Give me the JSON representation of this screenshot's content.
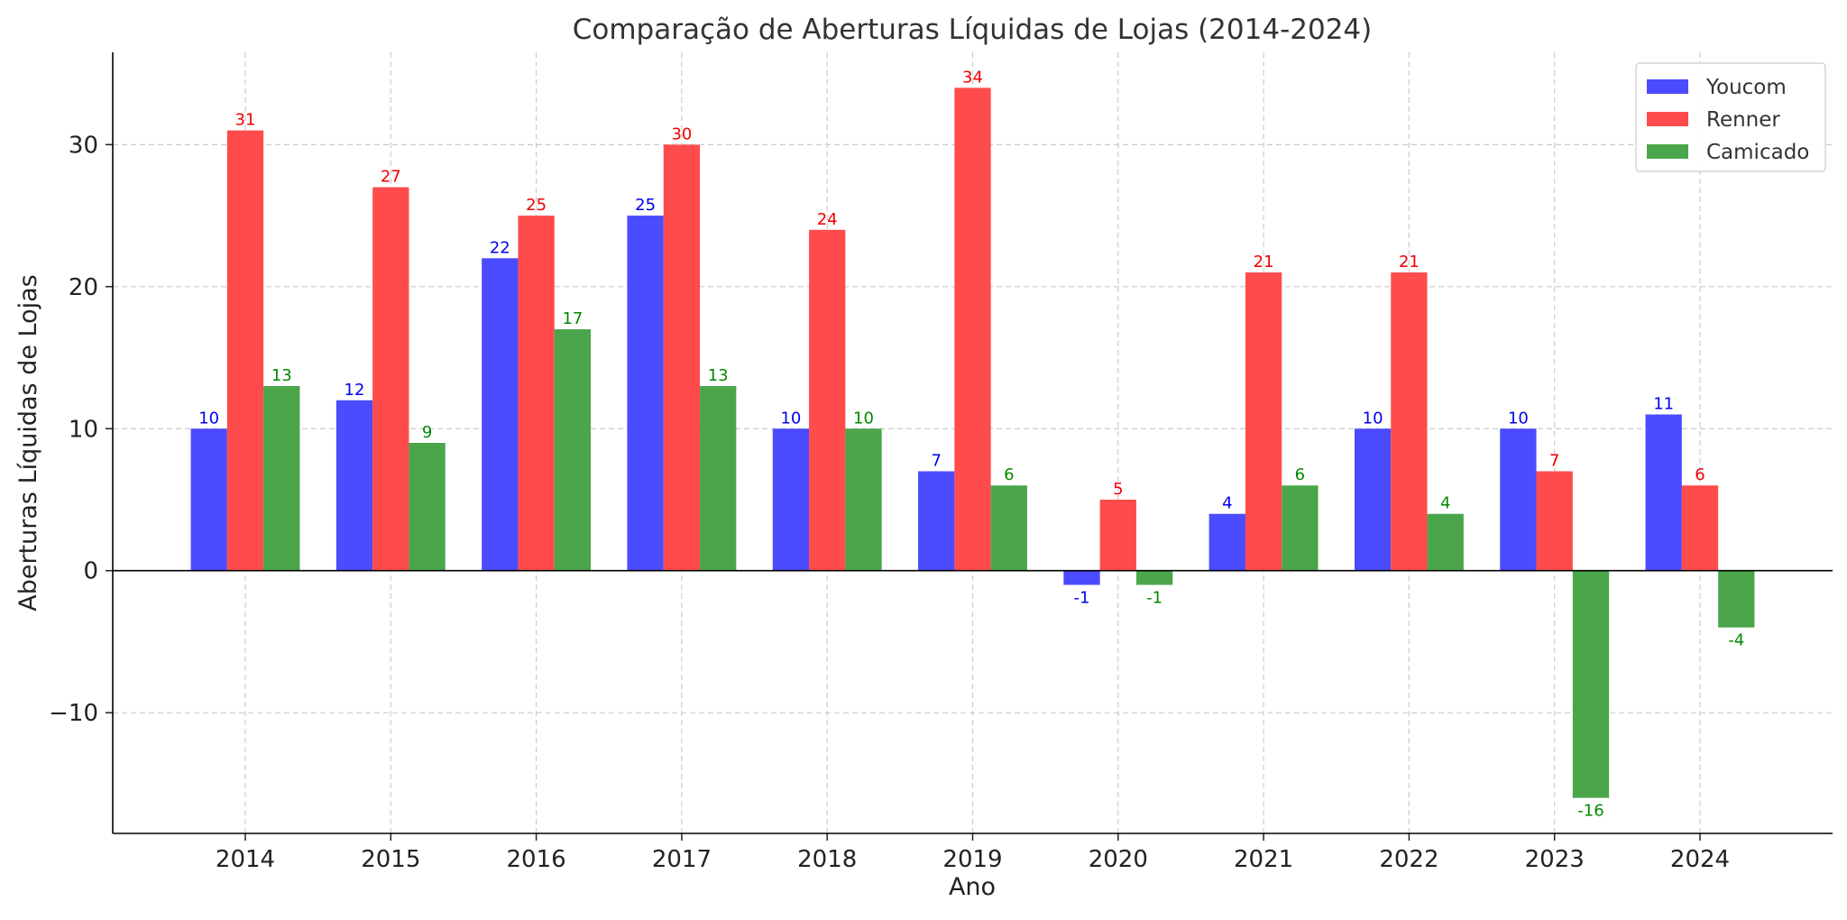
{
  "chart_data": {
    "type": "bar",
    "title": "Comparação de Aberturas Líquidas de Lojas (2014-2024)",
    "xlabel": "Ano",
    "ylabel": "Aberturas Líquidas de Lojas",
    "categories": [
      "2014",
      "2015",
      "2016",
      "2017",
      "2018",
      "2019",
      "2020",
      "2021",
      "2022",
      "2023",
      "2024"
    ],
    "series": [
      {
        "name": "Youcom",
        "color": "#4b4bff",
        "label_color": "#0000ee",
        "values": [
          10,
          12,
          22,
          25,
          10,
          7,
          -1,
          4,
          10,
          10,
          11
        ]
      },
      {
        "name": "Renner",
        "color": "#ff4b4b",
        "label_color": "#ee0000",
        "values": [
          31,
          27,
          25,
          30,
          24,
          34,
          5,
          21,
          21,
          7,
          6
        ]
      },
      {
        "name": "Camicado",
        "color": "#4ba64b",
        "label_color": "#008800",
        "values": [
          13,
          9,
          17,
          13,
          10,
          6,
          -1,
          6,
          4,
          -16,
          -4
        ]
      }
    ],
    "ylim": [
      -18.5,
      36.5
    ],
    "yticks": [
      -10,
      0,
      10,
      20,
      30
    ],
    "ytick_labels": [
      "−10",
      "0",
      "10",
      "20",
      "30"
    ],
    "grid": true,
    "legend_position": "top-right"
  }
}
